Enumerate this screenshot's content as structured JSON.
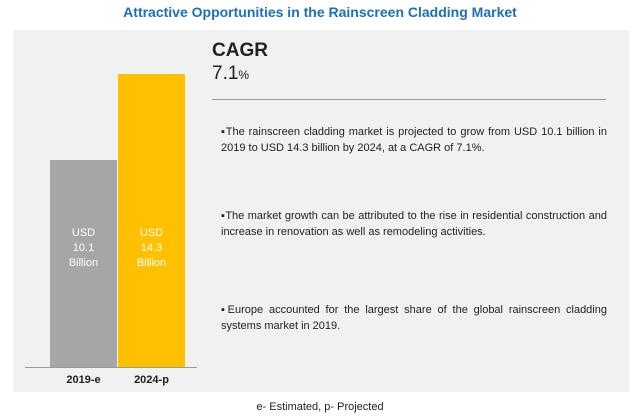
{
  "title": "Attractive Opportunities in the Rainscreen Cladding Market",
  "cagr": {
    "label": "CAGR",
    "value": "7.1",
    "unit": "%"
  },
  "bullets": [
    "The rainscreen cladding market is projected to grow from USD 10.1 billion in 2019 to USD 14.3 billion by 2024, at a CAGR of 7.1%.",
    "The market growth can be attributed to the rise in residential construction and increase in renovation as well as remodeling activities.",
    "Europe accounted for the largest share of the global rainscreen cladding systems market in 2019."
  ],
  "footnote": "e- Estimated, p- Projected",
  "colors": {
    "bar_2019": "#a6a6a6",
    "bar_2024": "#ffc000",
    "title": "#1f6fb5",
    "panel": "#f1f1f1"
  },
  "chart_data": {
    "type": "bar",
    "categories": [
      "2019-e",
      "2024-p"
    ],
    "values": [
      10.1,
      14.3
    ],
    "units": "USD Billion",
    "bar_labels": [
      [
        "USD",
        "10.1",
        "Billion"
      ],
      [
        "USD",
        "14.3",
        "Billion"
      ]
    ],
    "ylim": [
      0,
      14.3
    ],
    "grid": false,
    "legend": "none"
  }
}
